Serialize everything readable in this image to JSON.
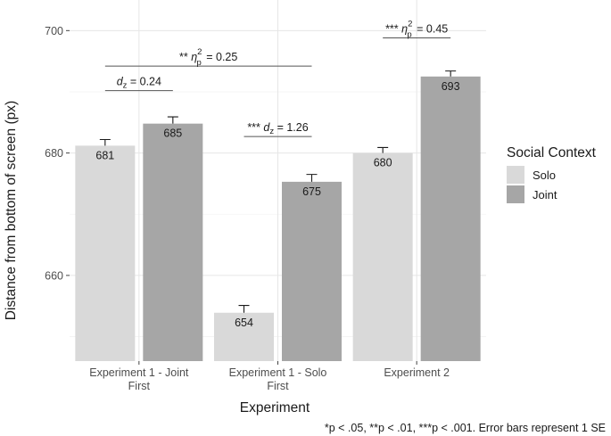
{
  "chart_data": {
    "type": "bar",
    "title": "",
    "xlabel": "Experiment",
    "ylabel": "Distance from bottom of screen (px)",
    "ylim": [
      646,
      705
    ],
    "yticks": [
      660,
      680,
      700
    ],
    "categories": [
      [
        "Experiment 1 - Joint",
        "First"
      ],
      [
        "Experiment 1 - Solo",
        "First"
      ],
      [
        "Experiment 2"
      ]
    ],
    "series": [
      {
        "name": "Solo",
        "color": "#d9d9d9",
        "values": [
          681.2,
          653.9,
          680.0
        ],
        "labels": [
          "681",
          "654",
          "680"
        ],
        "se": [
          1.0,
          1.2,
          0.9
        ]
      },
      {
        "name": "Joint",
        "color": "#a6a6a6",
        "values": [
          684.8,
          675.3,
          692.5
        ],
        "labels": [
          "685",
          "675",
          "693"
        ],
        "se": [
          1.1,
          1.2,
          0.9
        ]
      }
    ],
    "legend": {
      "title": "Social Context",
      "position": "right"
    },
    "annotations": [
      {
        "prefix": "",
        "stat": "d",
        "sub": "z",
        "sup": "",
        "value": "= 0.24",
        "from": [
          0,
          "Solo"
        ],
        "to": [
          0,
          "Joint"
        ],
        "level": 2
      },
      {
        "prefix": "** ",
        "stat": "η",
        "sub": "p",
        "sup": "2",
        "value": "= 0.25",
        "from": [
          0,
          "Solo"
        ],
        "to": [
          1,
          "Joint"
        ],
        "level": 3
      },
      {
        "prefix": "*** ",
        "stat": "d",
        "sub": "z",
        "sup": "",
        "value": "= 1.26",
        "from": [
          1,
          "Solo"
        ],
        "to": [
          1,
          "Joint"
        ],
        "level": 1
      },
      {
        "prefix": "*** ",
        "stat": "η",
        "sub": "p",
        "sup": "2",
        "value": "= 0.45",
        "from": [
          2,
          "Solo"
        ],
        "to": [
          2,
          "Joint"
        ],
        "level": 3
      }
    ],
    "caption": "*p < .05, **p < .01, ***p < .001. Error bars represent 1 SE"
  }
}
